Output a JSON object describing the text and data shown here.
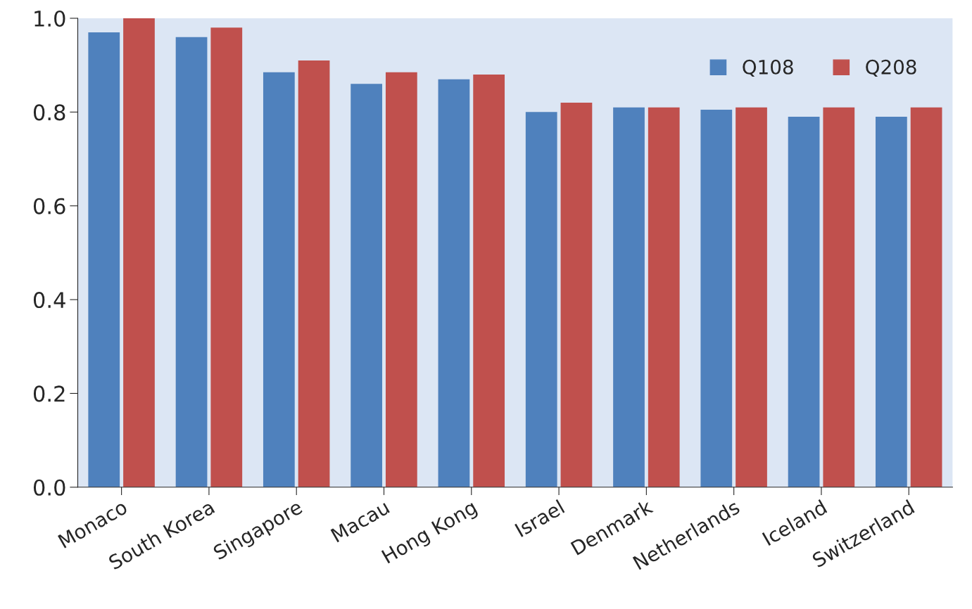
{
  "chart_data": {
    "type": "bar",
    "categories": [
      "Monaco",
      "South Korea",
      "Singapore",
      "Macau",
      "Hong Kong",
      "Israel",
      "Denmark",
      "Netherlands",
      "Iceland",
      "Switzerland"
    ],
    "series": [
      {
        "name": "Q108",
        "color": "#4f81bd",
        "values": [
          0.97,
          0.96,
          0.885,
          0.86,
          0.87,
          0.8,
          0.81,
          0.805,
          0.79,
          0.79
        ]
      },
      {
        "name": "Q208",
        "color": "#c0504d",
        "values": [
          1.0,
          0.98,
          0.91,
          0.885,
          0.88,
          0.82,
          0.81,
          0.81,
          0.81,
          0.81
        ]
      }
    ],
    "ylim": [
      0,
      1.0
    ],
    "yticks": [
      {
        "value": 0,
        "label": "0.0"
      },
      0.2,
      0.4,
      0.6,
      0.8,
      {
        "value": 1.0,
        "label": "1.0"
      }
    ],
    "grid": false,
    "legend": "top right"
  }
}
